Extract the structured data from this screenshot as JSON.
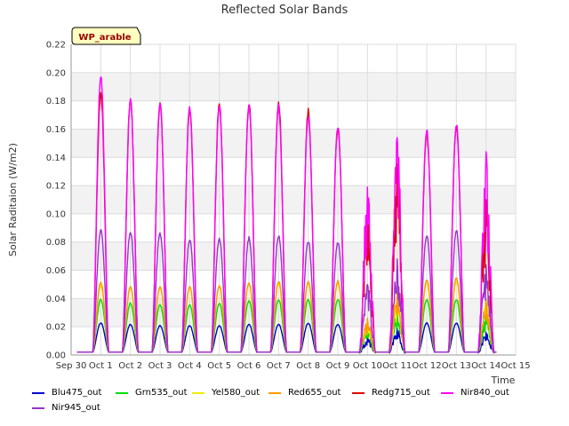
{
  "chart_data": {
    "type": "line",
    "title": "Reflected Solar Bands",
    "xlabel": "Time",
    "ylabel": "Solar Raditaion (W/m2)",
    "site_label": "WP_arable",
    "ylim": [
      0,
      0.22
    ],
    "yticks": [
      0.0,
      0.02,
      0.04,
      0.06,
      0.08,
      0.1,
      0.12,
      0.14,
      0.16,
      0.18,
      0.2,
      0.22
    ],
    "xlim": [
      "Sep 30",
      "Oct 15"
    ],
    "xticks": [
      "Sep 30",
      "Oct 1",
      "Oct 2",
      "Oct 3",
      "Oct 4",
      "Oct 5",
      "Oct 6",
      "Oct 7",
      "Oct 8",
      "Oct 9",
      "Oct 10",
      "Oct 11",
      "Oct 12",
      "Oct 13",
      "Oct 14",
      "Oct 15"
    ],
    "grid": true,
    "legend_position": "bottom",
    "days": [
      "Oct 1",
      "Oct 2",
      "Oct 3",
      "Oct 4",
      "Oct 5",
      "Oct 6",
      "Oct 7",
      "Oct 8",
      "Oct 9",
      "Oct 10",
      "Oct 11",
      "Oct 12",
      "Oct 13",
      "Oct 14"
    ],
    "series": [
      {
        "name": "Blu475_out",
        "color": "#0000cc",
        "daily_peak": [
          0.023,
          0.022,
          0.021,
          0.021,
          0.021,
          0.022,
          0.022,
          0.023,
          0.022,
          0.012,
          0.019,
          0.023,
          0.023,
          0.016
        ]
      },
      {
        "name": "Grn535_out",
        "color": "#00dd00",
        "daily_peak": [
          0.04,
          0.037,
          0.036,
          0.036,
          0.037,
          0.039,
          0.04,
          0.04,
          0.04,
          0.02,
          0.032,
          0.04,
          0.04,
          0.028
        ]
      },
      {
        "name": "Yel580_out",
        "color": "#eeee00",
        "daily_peak": [
          0.05,
          0.049,
          0.049,
          0.049,
          0.05,
          0.052,
          0.052,
          0.052,
          0.052,
          0.025,
          0.042,
          0.052,
          0.053,
          0.038
        ]
      },
      {
        "name": "Red655_out",
        "color": "#ff9900",
        "daily_peak": [
          0.052,
          0.049,
          0.049,
          0.049,
          0.05,
          0.052,
          0.053,
          0.053,
          0.053,
          0.026,
          0.045,
          0.054,
          0.055,
          0.04
        ]
      },
      {
        "name": "Redg715_out",
        "color": "#dd0000",
        "daily_peak": [
          0.188,
          0.183,
          0.181,
          0.178,
          0.181,
          0.181,
          0.182,
          0.175,
          0.164,
          0.1,
          0.135,
          0.158,
          0.165,
          0.11
        ]
      },
      {
        "name": "Nir840_out",
        "color": "#ff00ff",
        "daily_peak": [
          0.2,
          0.184,
          0.183,
          0.179,
          0.18,
          0.18,
          0.178,
          0.172,
          0.165,
          0.119,
          0.154,
          0.162,
          0.166,
          0.144
        ]
      },
      {
        "name": "Nir945_out",
        "color": "#9933cc",
        "daily_peak": [
          0.09,
          0.089,
          0.088,
          0.083,
          0.084,
          0.084,
          0.086,
          0.082,
          0.081,
          0.05,
          0.068,
          0.086,
          0.089,
          0.064
        ]
      }
    ]
  }
}
